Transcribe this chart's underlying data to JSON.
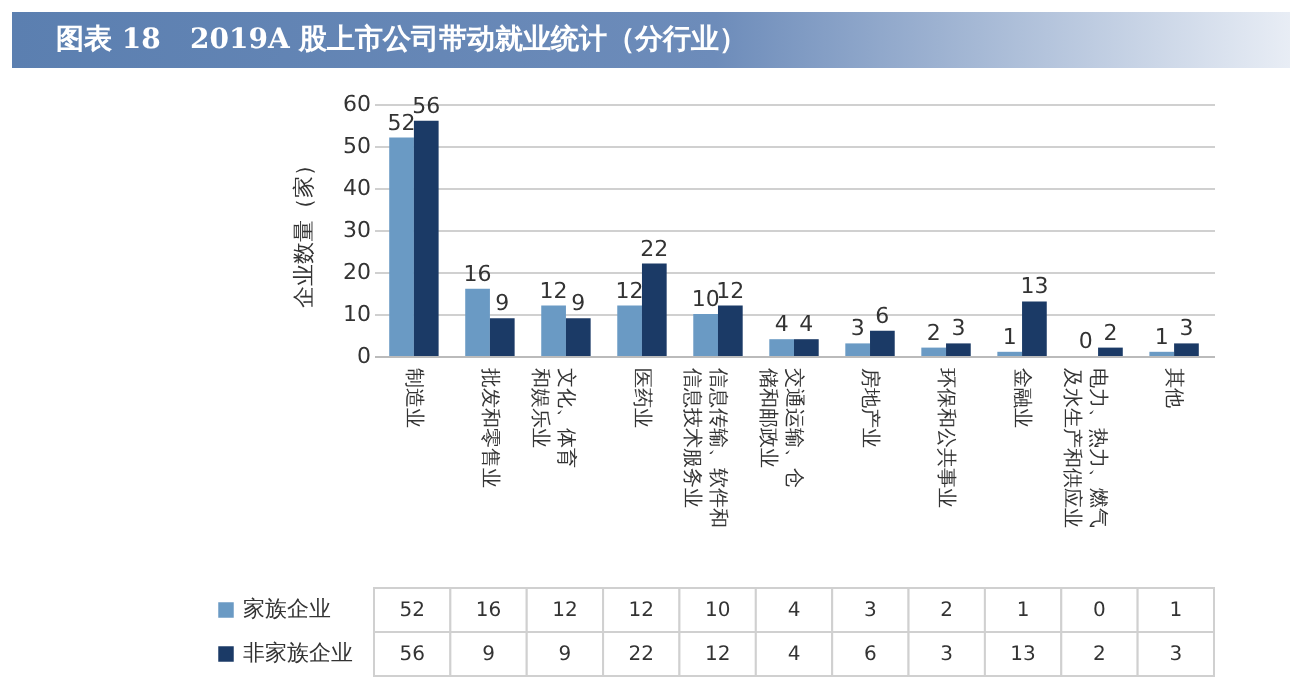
{
  "chart_data": {
    "type": "bar",
    "title": "图表 18   2019A 股上市公司带动就业统计（分行业）",
    "ylabel": "企业数量（家）",
    "categories": [
      "制造业",
      "批发和零售业",
      "文化、体育和娱乐业",
      "医药业",
      "信息传输、软件和信息技术服务业",
      "交通运输、仓储和邮政业",
      "房地产业",
      "环保和公共事业",
      "金融业",
      "电力、热力、燃气及水生产和供应业",
      "其他"
    ],
    "series": [
      {
        "name": "家族企业",
        "color": "#6a9ac4",
        "values": [
          52,
          16,
          12,
          12,
          10,
          4,
          3,
          2,
          1,
          0,
          1
        ],
        "value_labels": [
          "52",
          "16",
          "12",
          "12",
          "10",
          "4",
          "3",
          "2",
          "1",
          "0",
          "1"
        ]
      },
      {
        "name": "非家族企业",
        "color": "#1b3a66",
        "values": [
          56,
          9,
          9,
          22,
          12,
          4,
          6,
          3,
          13,
          2,
          3
        ],
        "value_labels": [
          "56",
          "9",
          "9",
          "22",
          "12",
          "4",
          "6",
          "3",
          "13",
          "2",
          "3"
        ]
      }
    ],
    "ylim": [
      0,
      60
    ],
    "yticks": [
      0,
      10,
      20,
      30,
      40,
      50,
      60
    ],
    "grid": "y",
    "data_labels": true,
    "legend": "bottom"
  }
}
